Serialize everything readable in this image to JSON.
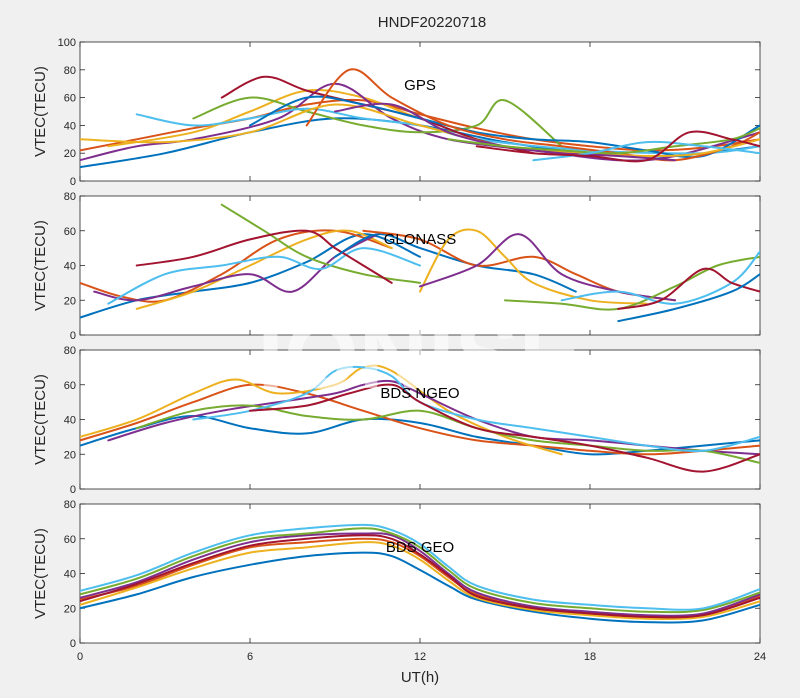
{
  "figure": {
    "title": "HNDF20220718",
    "xlabel": "UT(h)",
    "watermark": "IONISE"
  },
  "colors": [
    "#0072BD",
    "#D95319",
    "#EDB120",
    "#7E2F8E",
    "#77AC30",
    "#4DBEEE",
    "#A2142F"
  ],
  "chart_data": [
    {
      "type": "line",
      "panel_label": "GPS",
      "ylabel": "VTEC(TECU)",
      "xlim": [
        0,
        24
      ],
      "ylim": [
        0,
        100
      ],
      "xticks": [
        0,
        6,
        12,
        18,
        24
      ],
      "yticks": [
        0,
        20,
        40,
        60,
        80,
        100
      ],
      "series": [
        {
          "x": [
            0,
            3,
            6,
            9,
            12,
            15,
            18,
            21,
            24
          ],
          "y": [
            10,
            20,
            35,
            45,
            40,
            28,
            20,
            18,
            25
          ]
        },
        {
          "x": [
            0,
            2,
            4,
            6,
            8,
            10,
            12,
            14,
            16,
            18,
            20,
            22,
            24
          ],
          "y": [
            22,
            30,
            38,
            45,
            55,
            58,
            48,
            38,
            30,
            25,
            22,
            24,
            30
          ]
        },
        {
          "x": [
            1,
            4,
            6,
            8,
            10,
            12,
            14
          ],
          "y": [
            25,
            35,
            50,
            65,
            60,
            45,
            35
          ]
        },
        {
          "x": [
            0,
            2,
            4,
            7,
            9,
            11,
            13,
            16,
            19,
            21,
            24
          ],
          "y": [
            15,
            25,
            30,
            45,
            70,
            45,
            30,
            22,
            15,
            18,
            35
          ]
        },
        {
          "x": [
            4,
            6,
            8,
            10,
            12,
            14,
            15,
            17
          ],
          "y": [
            45,
            60,
            50,
            40,
            35,
            40,
            58,
            25
          ]
        },
        {
          "x": [
            2,
            4,
            6,
            8,
            10,
            12,
            14,
            18,
            22,
            24
          ],
          "y": [
            48,
            40,
            45,
            52,
            45,
            40,
            30,
            22,
            20,
            25
          ]
        },
        {
          "x": [
            5,
            6.5,
            8,
            10,
            12,
            14,
            16
          ],
          "y": [
            60,
            75,
            65,
            55,
            45,
            30,
            20
          ]
        },
        {
          "x": [
            6,
            8,
            10,
            12,
            14,
            16,
            18,
            20,
            22,
            24
          ],
          "y": [
            40,
            60,
            55,
            45,
            35,
            30,
            28,
            22,
            18,
            40
          ]
        },
        {
          "x": [
            8,
            9.5,
            11,
            13,
            15,
            17,
            19,
            21,
            23,
            24
          ],
          "y": [
            40,
            80,
            60,
            40,
            30,
            25,
            20,
            15,
            25,
            35
          ]
        },
        {
          "x": [
            0,
            3,
            6,
            9,
            12,
            15,
            18,
            20,
            22,
            24
          ],
          "y": [
            30,
            28,
            35,
            55,
            40,
            25,
            20,
            18,
            20,
            30
          ]
        },
        {
          "x": [
            9,
            11,
            13,
            15,
            17,
            19,
            21
          ],
          "y": [
            50,
            55,
            35,
            25,
            20,
            18,
            15
          ]
        },
        {
          "x": [
            13,
            15,
            17,
            19,
            21,
            23,
            24
          ],
          "y": [
            30,
            25,
            22,
            20,
            25,
            30,
            38
          ]
        },
        {
          "x": [
            16,
            18,
            20,
            22,
            24
          ],
          "y": [
            15,
            20,
            28,
            25,
            20
          ]
        },
        {
          "x": [
            14,
            16,
            18,
            20,
            21.5,
            23,
            24
          ],
          "y": [
            25,
            20,
            18,
            15,
            35,
            30,
            25
          ]
        }
      ]
    },
    {
      "type": "line",
      "panel_label": "GLONASS",
      "ylabel": "VTEC(TECU)",
      "xlim": [
        0,
        24
      ],
      "ylim": [
        0,
        80
      ],
      "xticks": [
        0,
        6,
        12,
        18,
        24
      ],
      "yticks": [
        0,
        20,
        40,
        60,
        80
      ],
      "series": [
        {
          "x": [
            0,
            2,
            4,
            6,
            8,
            10,
            12
          ],
          "y": [
            10,
            20,
            25,
            30,
            42,
            58,
            45
          ]
        },
        {
          "x": [
            0,
            1.5,
            3,
            5,
            7,
            9,
            11
          ],
          "y": [
            30,
            22,
            20,
            35,
            55,
            60,
            50
          ]
        },
        {
          "x": [
            2,
            4,
            6,
            8,
            9.5,
            11
          ],
          "y": [
            15,
            25,
            40,
            55,
            60,
            50
          ]
        },
        {
          "x": [
            0.5,
            2,
            4,
            6,
            7.5,
            9,
            10.5
          ],
          "y": [
            25,
            20,
            28,
            35,
            25,
            45,
            58
          ]
        },
        {
          "x": [
            5,
            6.5,
            8,
            10,
            12
          ],
          "y": [
            75,
            60,
            45,
            35,
            30
          ]
        },
        {
          "x": [
            1,
            3,
            5,
            7,
            8.5,
            10,
            12
          ],
          "y": [
            18,
            35,
            40,
            45,
            38,
            50,
            40
          ]
        },
        {
          "x": [
            2,
            4,
            6,
            8,
            9,
            10,
            11
          ],
          "y": [
            40,
            45,
            55,
            60,
            50,
            40,
            30
          ]
        },
        {
          "x": [
            9,
            10.5,
            12,
            14,
            16,
            17.5
          ],
          "y": [
            45,
            58,
            50,
            40,
            35,
            25
          ]
        },
        {
          "x": [
            10,
            12,
            14,
            16,
            17.5,
            19,
            21
          ],
          "y": [
            60,
            55,
            40,
            45,
            35,
            25,
            20
          ]
        },
        {
          "x": [
            12,
            13,
            14,
            15,
            16,
            18,
            20
          ],
          "y": [
            25,
            55,
            60,
            45,
            30,
            20,
            18
          ]
        },
        {
          "x": [
            12,
            14,
            15.5,
            17,
            19,
            21
          ],
          "y": [
            28,
            40,
            58,
            35,
            25,
            20
          ]
        },
        {
          "x": [
            15,
            17,
            19,
            21,
            22.5,
            24
          ],
          "y": [
            20,
            18,
            15,
            28,
            40,
            45
          ]
        },
        {
          "x": [
            17,
            19,
            21,
            23,
            24
          ],
          "y": [
            20,
            25,
            18,
            30,
            48
          ]
        },
        {
          "x": [
            19,
            20.5,
            22,
            23,
            24
          ],
          "y": [
            15,
            20,
            38,
            30,
            25
          ]
        },
        {
          "x": [
            19,
            21,
            23,
            24
          ],
          "y": [
            8,
            15,
            25,
            35
          ]
        }
      ]
    },
    {
      "type": "line",
      "panel_label": "BDS NGEO",
      "ylabel": "VTEC(TECU)",
      "xlim": [
        0,
        24
      ],
      "ylim": [
        0,
        80
      ],
      "xticks": [
        0,
        6,
        12,
        18,
        24
      ],
      "yticks": [
        0,
        20,
        40,
        60,
        80
      ],
      "series": [
        {
          "x": [
            0,
            2,
            4,
            6,
            8,
            10,
            12,
            14,
            16,
            18,
            20,
            22,
            24
          ],
          "y": [
            25,
            35,
            42,
            35,
            32,
            40,
            38,
            30,
            25,
            20,
            22,
            25,
            28
          ]
        },
        {
          "x": [
            0,
            2,
            4,
            6,
            8,
            10,
            12,
            14,
            16,
            18,
            20,
            22,
            24
          ],
          "y": [
            28,
            38,
            50,
            60,
            55,
            45,
            35,
            28,
            25,
            22,
            20,
            22,
            25
          ]
        },
        {
          "x": [
            0,
            2,
            4,
            5.5,
            7,
            9,
            10,
            11,
            13,
            15,
            17
          ],
          "y": [
            30,
            40,
            55,
            63,
            55,
            60,
            70,
            68,
            45,
            30,
            20
          ]
        },
        {
          "x": [
            1,
            3,
            5,
            7,
            9,
            10,
            11,
            12,
            14,
            16,
            18,
            20,
            22,
            24
          ],
          "y": [
            28,
            38,
            45,
            50,
            55,
            60,
            62,
            55,
            40,
            30,
            28,
            25,
            22,
            20
          ]
        },
        {
          "x": [
            2,
            4,
            6,
            8,
            10,
            12,
            14,
            16,
            18,
            20,
            22,
            24
          ],
          "y": [
            35,
            45,
            48,
            42,
            40,
            45,
            35,
            28,
            25,
            22,
            22,
            15
          ]
        },
        {
          "x": [
            4,
            6,
            8,
            9,
            10,
            11,
            12,
            14,
            16,
            18,
            20,
            22,
            24
          ],
          "y": [
            40,
            45,
            55,
            68,
            70,
            65,
            50,
            40,
            35,
            30,
            25,
            22,
            30
          ]
        },
        {
          "x": [
            6,
            8,
            9.5,
            11,
            12,
            14,
            16,
            18,
            20,
            22,
            24
          ],
          "y": [
            45,
            48,
            55,
            60,
            50,
            35,
            30,
            25,
            18,
            10,
            20
          ]
        }
      ]
    },
    {
      "type": "line",
      "panel_label": "BDS GEO",
      "ylabel": "VTEC(TECU)",
      "xlim": [
        0,
        24
      ],
      "ylim": [
        0,
        80
      ],
      "xticks": [
        0,
        6,
        12,
        18,
        24
      ],
      "yticks": [
        0,
        20,
        40,
        60,
        80
      ],
      "series": [
        {
          "x": [
            0,
            2,
            4,
            6,
            8,
            10,
            11,
            12,
            13,
            14,
            16,
            18,
            20,
            22,
            24
          ],
          "y": [
            20,
            28,
            38,
            45,
            50,
            52,
            50,
            42,
            33,
            25,
            18,
            14,
            12,
            13,
            22
          ]
        },
        {
          "x": [
            0,
            2,
            4,
            6,
            8,
            10,
            11,
            12,
            13,
            14,
            16,
            18,
            20,
            22,
            24
          ],
          "y": [
            25,
            33,
            45,
            55,
            58,
            60,
            58,
            50,
            38,
            28,
            20,
            17,
            15,
            16,
            27
          ]
        },
        {
          "x": [
            0,
            2,
            4,
            6,
            8,
            10,
            11,
            12,
            13,
            14,
            16,
            18,
            20,
            22,
            24
          ],
          "y": [
            22,
            32,
            43,
            52,
            55,
            58,
            56,
            48,
            36,
            26,
            19,
            16,
            14,
            15,
            24
          ]
        },
        {
          "x": [
            0,
            2,
            4,
            6,
            8,
            10,
            11,
            12,
            13,
            14,
            16,
            18,
            20,
            22,
            24
          ],
          "y": [
            26,
            35,
            48,
            58,
            62,
            63,
            62,
            53,
            40,
            29,
            21,
            18,
            16,
            17,
            28
          ]
        },
        {
          "x": [
            0,
            2,
            4,
            6,
            8,
            10,
            11,
            12,
            13,
            14,
            16,
            18,
            20,
            22,
            24
          ],
          "y": [
            28,
            37,
            50,
            60,
            63,
            66,
            63,
            55,
            42,
            31,
            23,
            20,
            18,
            19,
            29
          ]
        },
        {
          "x": [
            0,
            2,
            4,
            6,
            8,
            10,
            11,
            12,
            13,
            14,
            16,
            18,
            20,
            22,
            24
          ],
          "y": [
            30,
            39,
            52,
            62,
            66,
            68,
            65,
            57,
            44,
            33,
            25,
            22,
            20,
            20,
            31
          ]
        },
        {
          "x": [
            0,
            2,
            4,
            6,
            8,
            10,
            11,
            12,
            13,
            14,
            16,
            18,
            20,
            22,
            24
          ],
          "y": [
            24,
            34,
            46,
            56,
            60,
            62,
            60,
            51,
            39,
            27,
            20,
            17,
            15,
            16,
            26
          ]
        }
      ]
    }
  ]
}
